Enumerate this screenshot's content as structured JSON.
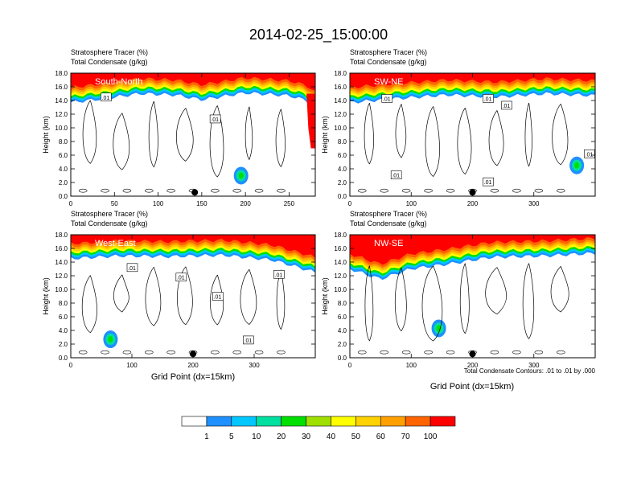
{
  "title": "2014-02-25_15:00:00",
  "footnote": "Total Condensate Contours: .01 to .01 by .000",
  "xlabel": "Grid Point (dx=15km)",
  "ylabel": "Height (km)",
  "subtitle_line1": "Stratosphere Tracer   (%)",
  "subtitle_line2": "Total Condensate   (g/kg)",
  "colors": [
    "#ffffff",
    "#1e90ff",
    "#00c8ff",
    "#00e0a0",
    "#00e000",
    "#a0e000",
    "#ffff00",
    "#ffd200",
    "#ffa000",
    "#ff6400",
    "#ff0000"
  ],
  "colorbar_labels": [
    "1",
    "5",
    "10",
    "20",
    "30",
    "40",
    "50",
    "60",
    "70",
    "100"
  ],
  "chart_data": [
    {
      "type": "heatmap",
      "label": "South-North",
      "xlim": [
        0,
        280
      ],
      "ylim": [
        0,
        18
      ],
      "xticks": [
        0,
        50,
        100,
        150,
        200,
        250
      ],
      "yticks": [
        "0.0",
        "2.0",
        "4.0",
        "6.0",
        "8.0",
        "10.0",
        "12.0",
        "14.0",
        "16.0",
        "18.0"
      ],
      "tropopause_km": [
        [
          0,
          14.2
        ],
        [
          40,
          14.8
        ],
        [
          80,
          15.5
        ],
        [
          120,
          15.3
        ],
        [
          150,
          14.6
        ],
        [
          200,
          15.6
        ],
        [
          250,
          15.2
        ],
        [
          270,
          14.5
        ],
        [
          280,
          13.5
        ]
      ],
      "plume": [
        [
          270,
          15
        ],
        [
          280,
          15
        ],
        [
          280,
          7
        ],
        [
          275,
          7
        ],
        [
          272,
          10
        ]
      ],
      "low_blob": [
        195,
        3.0
      ],
      "contour_labels": [
        [
          40,
          14.5,
          ".01"
        ],
        [
          165,
          11.3,
          ".01"
        ]
      ],
      "marker_x": 142
    },
    {
      "type": "heatmap",
      "label": "SW-NE",
      "xlim": [
        0,
        400
      ],
      "ylim": [
        0,
        18
      ],
      "xticks": [
        0,
        100,
        200,
        300
      ],
      "yticks": [
        "0.0",
        "2.0",
        "4.0",
        "6.0",
        "8.0",
        "10.0",
        "12.0",
        "14.0",
        "16.0",
        "18.0"
      ],
      "tropopause_km": [
        [
          0,
          14.2
        ],
        [
          80,
          14.8
        ],
        [
          160,
          15.3
        ],
        [
          240,
          15.0
        ],
        [
          320,
          15.5
        ],
        [
          400,
          15.2
        ]
      ],
      "plume": null,
      "low_blob": [
        370,
        4.5
      ],
      "contour_labels": [
        [
          60,
          14.3,
          ".01"
        ],
        [
          225,
          14.3,
          ".01"
        ],
        [
          255,
          13.3,
          ".01"
        ],
        [
          390,
          6.2,
          ".01"
        ],
        [
          75,
          3.1,
          ".01"
        ],
        [
          225,
          2.1,
          ".01"
        ]
      ],
      "marker_x": 200
    },
    {
      "type": "heatmap",
      "label": "West-East",
      "xlim": [
        0,
        400
      ],
      "ylim": [
        0,
        18
      ],
      "xticks": [
        0,
        100,
        200,
        300
      ],
      "yticks": [
        "0.0",
        "2.0",
        "4.0",
        "6.0",
        "8.0",
        "10.0",
        "12.0",
        "14.0",
        "16.0",
        "18.0"
      ],
      "tropopause_km": [
        [
          0,
          15.0
        ],
        [
          80,
          15.4
        ],
        [
          160,
          15.3
        ],
        [
          250,
          15.5
        ],
        [
          330,
          14.8
        ],
        [
          400,
          13.0
        ]
      ],
      "plume": null,
      "low_blob": [
        65,
        2.7
      ],
      "contour_labels": [
        [
          100,
          13.2,
          ".01"
        ],
        [
          180,
          11.8,
          ".01"
        ],
        [
          240,
          9.0,
          ".01"
        ],
        [
          340,
          12.2,
          ".01"
        ],
        [
          290,
          2.6,
          ".01"
        ]
      ],
      "marker_x": 200
    },
    {
      "type": "heatmap",
      "label": "NW-SE",
      "xlim": [
        0,
        400
      ],
      "ylim": [
        0,
        18
      ],
      "xticks": [
        0,
        100,
        200,
        300
      ],
      "yticks": [
        "0.0",
        "2.0",
        "4.0",
        "6.0",
        "8.0",
        "10.0",
        "12.0",
        "14.0",
        "16.0",
        "18.0"
      ],
      "tropopause_km": [
        [
          0,
          13.5
        ],
        [
          50,
          12.0
        ],
        [
          100,
          13.5
        ],
        [
          160,
          14.2
        ],
        [
          230,
          15.2
        ],
        [
          320,
          15.4
        ],
        [
          400,
          15.8
        ]
      ],
      "plume": null,
      "low_blob": [
        145,
        4.3
      ],
      "contour_labels": [],
      "marker_x": 200
    }
  ]
}
